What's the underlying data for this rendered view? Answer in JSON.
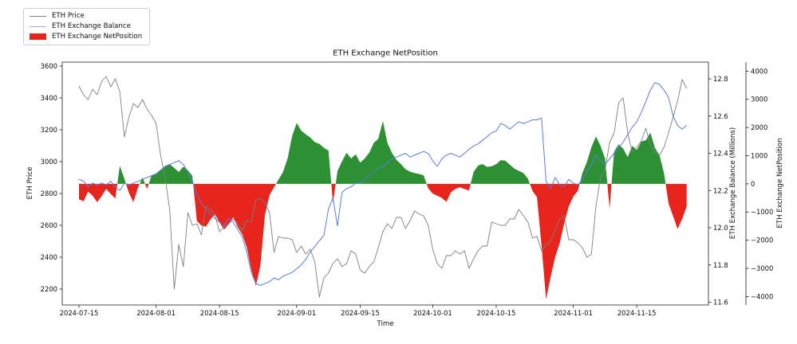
{
  "title": "ETH Exchange NetPosition",
  "legend": {
    "entries": [
      {
        "label": "ETH Price",
        "swatch": "line",
        "color": "#7f7f7f"
      },
      {
        "label": "ETH Exchange Balance",
        "swatch": "line",
        "color": "#9fafe8"
      },
      {
        "label": "ETH Exchange NetPosition",
        "swatch": "patch",
        "color": "#e8251d"
      }
    ]
  },
  "chart_data": {
    "type": "line+area combo, 3 y-axes",
    "title": "ETH Exchange NetPosition",
    "xlabel": "Time",
    "grid": false,
    "legend_position": "upper-left, outside axes",
    "start_date": "2024-07-15",
    "frequency": "daily",
    "x_range_days": [
      -3.7,
      138.8
    ],
    "x_ticks": [
      "2024-07-15",
      "2024-08-01",
      "2024-08-15",
      "2024-09-01",
      "2024-09-15",
      "2024-10-01",
      "2024-10-15",
      "2024-11-01",
      "2024-11-15"
    ],
    "axes": {
      "price": {
        "side": "left",
        "label": "ETH Price",
        "range": [
          2100,
          3625
        ],
        "tick_values": [
          2200,
          2400,
          2600,
          2800,
          3000,
          3200,
          3400,
          3600
        ],
        "tick_labels": [
          "2200",
          "2400",
          "2600",
          "2800",
          "3000",
          "3200",
          "3400",
          "3600"
        ]
      },
      "balance": {
        "side": "right",
        "label": "ETH Exchange Balance (Millions)",
        "range": [
          11.585,
          12.89
        ],
        "tick_values": [
          11.6,
          11.8,
          12.0,
          12.2,
          12.4,
          12.6,
          12.8
        ],
        "tick_labels": [
          "11.6",
          "11.8",
          "12.0",
          "12.2",
          "12.4",
          "12.6",
          "12.8"
        ]
      },
      "netpos": {
        "side": "right2",
        "label": "ETH Exchange NetPosition",
        "range": [
          -4300,
          4320
        ],
        "tick_values": [
          -4000,
          -3000,
          -2000,
          -1000,
          0,
          1000,
          2000,
          3000,
          4000
        ],
        "tick_labels": [
          "−4000",
          "−3000",
          "−2000",
          "−1000",
          "0",
          "1000",
          "2000",
          "3000",
          "4000"
        ]
      }
    },
    "series": [
      {
        "name": "ETH Price",
        "type": "line",
        "axis": "price",
        "color": "#7f7f7f",
        "width": 0.9,
        "values": [
          3475,
          3420,
          3390,
          3455,
          3420,
          3505,
          3535,
          3470,
          3520,
          3440,
          3155,
          3280,
          3365,
          3340,
          3390,
          3330,
          3290,
          3240,
          3040,
          2900,
          2700,
          2200,
          2480,
          2340,
          2680,
          2600,
          2610,
          2540,
          2720,
          2700,
          2660,
          2560,
          2590,
          2610,
          2640,
          2610,
          2570,
          2630,
          2620,
          2760,
          2770,
          2740,
          2680,
          2430,
          2530,
          2520,
          2520,
          2510,
          2430,
          2470,
          2420,
          2450,
          2370,
          2150,
          2270,
          2300,
          2360,
          2390,
          2340,
          2360,
          2440,
          2420,
          2320,
          2300,
          2340,
          2370,
          2460,
          2560,
          2610,
          2580,
          2650,
          2650,
          2580,
          2630,
          2690,
          2670,
          2660,
          2600,
          2450,
          2360,
          2330,
          2410,
          2410,
          2440,
          2420,
          2440,
          2330,
          2390,
          2440,
          2470,
          2470,
          2620,
          2610,
          2600,
          2600,
          2640,
          2640,
          2700,
          2660,
          2620,
          2520,
          2530,
          2440,
          2480,
          2500,
          2570,
          2640,
          2660,
          2510,
          2510,
          2490,
          2460,
          2400,
          2420,
          2720,
          2900,
          2950,
          3120,
          3180,
          3370,
          3400,
          3180,
          3060,
          3090,
          3130,
          3210,
          3100,
          3060,
          3040,
          3090,
          3180,
          3280,
          3380,
          3515,
          3460
        ]
      },
      {
        "name": "ETH Exchange Balance",
        "type": "line",
        "axis": "balance",
        "color": "#5a7cdc",
        "width": 1.0,
        "values": [
          12.26,
          12.25,
          12.22,
          12.24,
          12.23,
          12.24,
          12.23,
          12.25,
          12.22,
          12.2,
          12.24,
          12.23,
          12.24,
          12.25,
          12.26,
          12.27,
          12.28,
          12.29,
          12.31,
          12.33,
          12.34,
          12.35,
          12.36,
          12.34,
          12.3,
          12.25,
          12.18,
          12.13,
          12.1,
          12.07,
          12.05,
          12.03,
          12.01,
          12.05,
          12.03,
          11.99,
          11.95,
          11.87,
          11.76,
          11.7,
          11.69,
          11.7,
          11.71,
          11.73,
          11.72,
          11.74,
          11.75,
          11.76,
          11.78,
          11.8,
          11.83,
          11.87,
          11.9,
          11.93,
          11.96,
          12.1,
          12.16,
          12.01,
          12.19,
          12.21,
          12.22,
          12.24,
          12.24,
          12.26,
          12.28,
          12.3,
          12.32,
          12.33,
          12.35,
          12.37,
          12.38,
          12.39,
          12.4,
          12.38,
          12.39,
          12.4,
          12.41,
          12.4,
          12.36,
          12.33,
          12.37,
          12.39,
          12.4,
          12.39,
          12.38,
          12.4,
          12.42,
          12.44,
          12.45,
          12.47,
          12.49,
          12.51,
          12.52,
          12.56,
          12.55,
          12.53,
          12.55,
          12.57,
          12.56,
          12.57,
          12.58,
          12.58,
          12.59,
          12.25,
          12.21,
          12.27,
          12.23,
          12.22,
          12.26,
          12.24,
          12.23,
          12.26,
          12.3,
          12.34,
          12.39,
          12.36,
          12.34,
          12.37,
          12.4,
          12.43,
          12.46,
          12.5,
          12.54,
          12.57,
          12.62,
          12.68,
          12.74,
          12.78,
          12.77,
          12.74,
          12.7,
          12.6,
          12.55,
          12.53,
          12.55
        ]
      },
      {
        "name": "ETH Exchange NetPosition",
        "type": "area",
        "axis": "netpos",
        "positive_color": "#2d9033",
        "negative_color": "#e8251d",
        "values": [
          -550,
          -620,
          -280,
          -420,
          -650,
          -430,
          -180,
          -360,
          -520,
          640,
          180,
          -320,
          -650,
          -140,
          230,
          -180,
          300,
          340,
          480,
          640,
          700,
          560,
          420,
          610,
          480,
          280,
          -1320,
          -1480,
          -1520,
          -1260,
          -1080,
          -1380,
          -1620,
          -1440,
          -1180,
          -1540,
          -1800,
          -2250,
          -3050,
          -3620,
          -2900,
          -1100,
          -400,
          -120,
          150,
          420,
          900,
          1700,
          2160,
          1880,
          1760,
          1640,
          1480,
          1420,
          1280,
          1180,
          -680,
          450,
          800,
          1100,
          900,
          1050,
          750,
          900,
          1100,
          1450,
          1600,
          2230,
          1450,
          1100,
          850,
          700,
          520,
          430,
          380,
          350,
          300,
          -150,
          -350,
          -420,
          -500,
          -640,
          -300,
          -180,
          -120,
          -180,
          -240,
          420,
          650,
          700,
          600,
          620,
          700,
          840,
          820,
          680,
          540,
          460,
          380,
          180,
          -250,
          -480,
          -2200,
          -4100,
          -3300,
          -2600,
          -2100,
          -1400,
          -800,
          -450,
          -250,
          380,
          780,
          1300,
          1680,
          1350,
          900,
          -880,
          1150,
          1400,
          1250,
          950,
          1350,
          1200,
          1500,
          1550,
          1820,
          1280,
          1020,
          380,
          -700,
          -1150,
          -1600,
          -1250,
          -800
        ]
      }
    ]
  }
}
